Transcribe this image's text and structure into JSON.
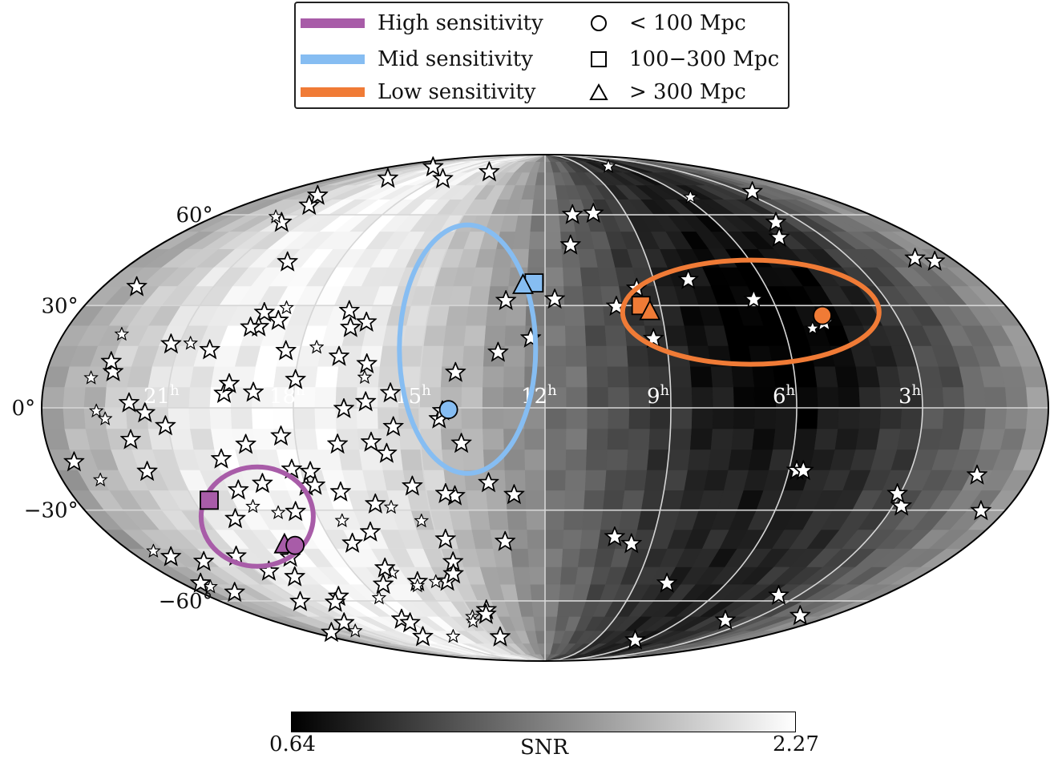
{
  "chart_data": {
    "type": "heatmap",
    "projection": "mollweide",
    "title": "",
    "grid": true,
    "legend_position": "top-center",
    "ra_tick_labels": [
      "21h",
      "18h",
      "15h",
      "12h",
      "9h",
      "6h",
      "3h"
    ],
    "dec_tick_labels": [
      "60°",
      "30°",
      "0°",
      "−30°",
      "−60°"
    ],
    "colorbar": {
      "label": "SNR",
      "min_label": "0.64",
      "max_label": "2.27",
      "min": 0.64,
      "max": 2.27,
      "colormap": "gray"
    },
    "sensitivity_regions": [
      {
        "name": "High sensitivity",
        "color": "#a85ca8",
        "center_ra_h": 19.6,
        "center_dec": -32
      },
      {
        "name": "Mid sensitivity",
        "color": "#86bdf2",
        "center_ra_h": 13.9,
        "center_dec": 17
      },
      {
        "name": "Low sensitivity",
        "color": "#f07b36",
        "center_ra_h": 6.7,
        "center_dec": 28
      }
    ],
    "distance_bins": [
      {
        "label": "< 100 Mpc",
        "marker": "circle"
      },
      {
        "label": "100−300 Mpc",
        "marker": "square"
      },
      {
        "label": "> 300 Mpc",
        "marker": "triangle"
      }
    ],
    "sources": [
      {
        "region": "High sensitivity",
        "marker": "square",
        "ra_h": 20.6,
        "dec": -27
      },
      {
        "region": "High sensitivity",
        "marker": "triangle",
        "ra_h": 19.4,
        "dec": -41
      },
      {
        "region": "High sensitivity",
        "marker": "circle",
        "ra_h": 19.1,
        "dec": -41
      },
      {
        "region": "Mid sensitivity",
        "marker": "square",
        "ra_h": 12.3,
        "dec": 37
      },
      {
        "region": "Mid sensitivity",
        "marker": "triangle",
        "ra_h": 12.6,
        "dec": 36
      },
      {
        "region": "Mid sensitivity",
        "marker": "circle",
        "ra_h": 14.3,
        "dec": -0.5
      },
      {
        "region": "Low sensitivity",
        "marker": "square",
        "ra_h": 9.5,
        "dec": 30
      },
      {
        "region": "Low sensitivity",
        "marker": "triangle",
        "ra_h": 9.3,
        "dec": 28
      },
      {
        "region": "Low sensitivity",
        "marker": "circle",
        "ra_h": 4.9,
        "dec": 27
      }
    ],
    "snr_scale_note": "",
    "galaxy_catalog_markers": "star"
  }
}
